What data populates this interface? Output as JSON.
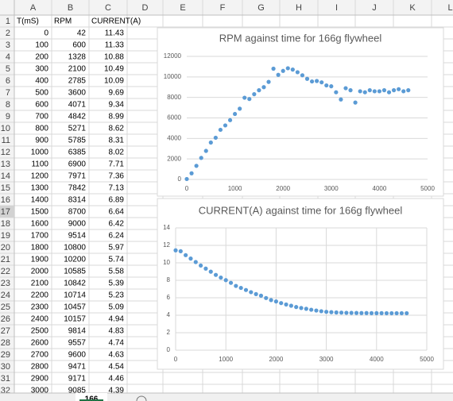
{
  "spreadsheet": {
    "columns": [
      "A",
      "B",
      "C",
      "D",
      "E",
      "F",
      "G",
      "H",
      "I",
      "J",
      "K",
      "L"
    ],
    "row_numbers": [
      1,
      2,
      3,
      4,
      5,
      6,
      7,
      8,
      9,
      10,
      11,
      12,
      13,
      14,
      15,
      16,
      17,
      18,
      19,
      20,
      21,
      22,
      23,
      24,
      25,
      26,
      27,
      28,
      29,
      30,
      31,
      32
    ],
    "header": [
      "T(mS)",
      "RPM",
      "CURRENT(A)"
    ],
    "rows": [
      [
        0,
        42,
        11.43
      ],
      [
        100,
        600,
        11.33
      ],
      [
        200,
        1328,
        10.88
      ],
      [
        300,
        2100,
        10.49
      ],
      [
        400,
        2785,
        10.09
      ],
      [
        500,
        3600,
        9.69
      ],
      [
        600,
        4071,
        9.34
      ],
      [
        700,
        4842,
        8.99
      ],
      [
        800,
        5271,
        8.62
      ],
      [
        900,
        5785,
        8.31
      ],
      [
        1000,
        6385,
        8.02
      ],
      [
        1100,
        6900,
        7.71
      ],
      [
        1200,
        7971,
        7.36
      ],
      [
        1300,
        7842,
        7.13
      ],
      [
        1400,
        8314,
        6.89
      ],
      [
        1500,
        8700,
        6.64
      ],
      [
        1600,
        9000,
        6.42
      ],
      [
        1700,
        9514,
        6.24
      ],
      [
        1800,
        10800,
        5.97
      ],
      [
        1900,
        10200,
        5.74
      ],
      [
        2000,
        10585,
        5.58
      ],
      [
        2100,
        10842,
        5.39
      ],
      [
        2200,
        10714,
        5.23
      ],
      [
        2300,
        10457,
        5.09
      ],
      [
        2400,
        10157,
        4.94
      ],
      [
        2500,
        9814,
        4.83
      ],
      [
        2600,
        9557,
        4.74
      ],
      [
        2700,
        9600,
        4.63
      ],
      [
        2800,
        9471,
        4.54
      ],
      [
        2900,
        9171,
        4.46
      ],
      [
        3000,
        9085,
        4.39
      ]
    ],
    "sheet_tab": "166"
  },
  "chart_data": [
    {
      "type": "scatter",
      "title": "RPM against time for 166g flywheel",
      "color": "#5b9bd5",
      "x": [
        0,
        100,
        200,
        300,
        400,
        500,
        600,
        700,
        800,
        900,
        1000,
        1100,
        1200,
        1300,
        1400,
        1500,
        1600,
        1700,
        1800,
        1900,
        2000,
        2100,
        2200,
        2300,
        2400,
        2500,
        2600,
        2700,
        2800,
        2900,
        3000,
        3100,
        3200,
        3300,
        3400,
        3500,
        3600,
        3700,
        3800,
        3900,
        4000,
        4100,
        4200,
        4300,
        4400,
        4500,
        4600
      ],
      "values": [
        42,
        600,
        1328,
        2100,
        2785,
        3600,
        4071,
        4842,
        5271,
        5785,
        6385,
        6900,
        7971,
        7842,
        8314,
        8700,
        9000,
        9514,
        10800,
        10200,
        10585,
        10842,
        10714,
        10457,
        10157,
        9814,
        9557,
        9600,
        9471,
        9171,
        9085,
        8500,
        7800,
        8900,
        8700,
        7500,
        8600,
        8500,
        8700,
        8600,
        8600,
        8700,
        8500,
        8700,
        8800,
        8600,
        8700
      ],
      "xlim": [
        0,
        5000
      ],
      "xticks": [
        0,
        1000,
        2000,
        3000,
        4000,
        5000
      ],
      "ylim": [
        0,
        12000
      ],
      "yticks": [
        0,
        2000,
        4000,
        6000,
        8000,
        10000,
        12000
      ],
      "grid": true,
      "xgrid": false
    },
    {
      "type": "scatter",
      "title": "CURRENT(A) against time for 166g flywheel",
      "color": "#5b9bd5",
      "x": [
        0,
        100,
        200,
        300,
        400,
        500,
        600,
        700,
        800,
        900,
        1000,
        1100,
        1200,
        1300,
        1400,
        1500,
        1600,
        1700,
        1800,
        1900,
        2000,
        2100,
        2200,
        2300,
        2400,
        2500,
        2600,
        2700,
        2800,
        2900,
        3000,
        3100,
        3200,
        3300,
        3400,
        3500,
        3600,
        3700,
        3800,
        3900,
        4000,
        4100,
        4200,
        4300,
        4400,
        4500,
        4600
      ],
      "values": [
        11.43,
        11.33,
        10.88,
        10.49,
        10.09,
        9.69,
        9.34,
        8.99,
        8.62,
        8.31,
        8.02,
        7.71,
        7.36,
        7.13,
        6.89,
        6.64,
        6.42,
        6.24,
        5.97,
        5.74,
        5.58,
        5.39,
        5.23,
        5.09,
        4.94,
        4.83,
        4.74,
        4.63,
        4.54,
        4.46,
        4.39,
        4.35,
        4.32,
        4.3,
        4.28,
        4.27,
        4.26,
        4.25,
        4.25,
        4.24,
        4.24,
        4.24,
        4.23,
        4.23,
        4.23,
        4.23,
        4.23
      ],
      "xlim": [
        0,
        5000
      ],
      "xticks": [
        0,
        1000,
        2000,
        3000,
        4000,
        5000
      ],
      "ylim": [
        0,
        14
      ],
      "yticks": [
        0,
        2,
        4,
        6,
        8,
        10,
        12,
        14
      ],
      "grid": true,
      "xgrid": true
    }
  ]
}
